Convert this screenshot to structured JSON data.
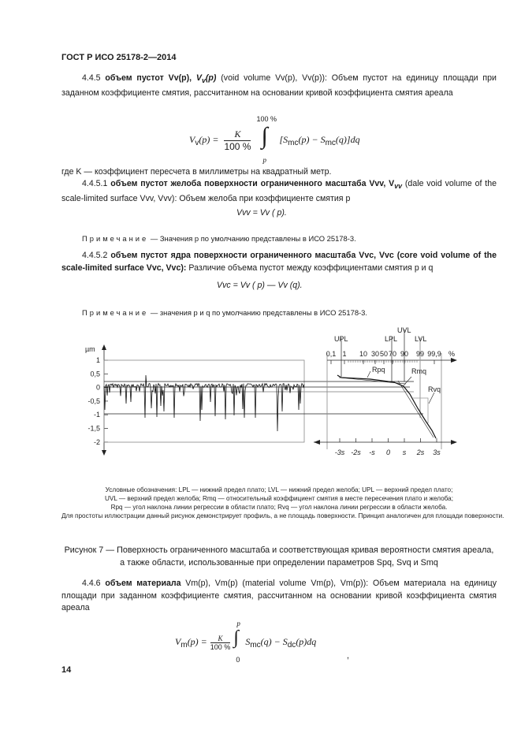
{
  "header": {
    "title": "ГОСТ Р ИСО 25178-2—2014"
  },
  "s445": {
    "num": "4.4.5",
    "term": "объем пустот Vv(p),",
    "term_sym": "V",
    "term_sub": "v",
    "term_arg": "(p)",
    "text": "(void volume Vv(p), Vv(p)): Объем пустот на единицу площади при заданном коэффициенте смятия, рассчитанном на основании кривой коэффициента смятия ареала",
    "formula": {
      "lhs": "V",
      "lhs_sub": "v",
      "lhs_arg": "(p) =",
      "num": "K",
      "den": "100 %",
      "upper": "100 %",
      "lower": "p",
      "body": "[S",
      "body_sub1": "mc",
      "body_mid": "(p) − S",
      "body_sub2": "mc",
      "body_end": "(q)]dq"
    },
    "where": "где K — коэффициент пересчета в миллиметры на квадратный метр."
  },
  "s4451": {
    "num": "4.4.5.1",
    "term": "объем пустот желоба поверхности ограниченного масштаба Vvv, V",
    "term_sub": "vv",
    "text": "(dale void volume of the scale-limited surface Vvv, Vvv): Объем желоба при коэффициенте смятия p",
    "formula": "Vvv = Vv ( p).",
    "note_label": "Примечание",
    "note": "— Значения p по умолчанию представлены в ИСО 25178-3."
  },
  "s4452": {
    "num": "4.4.5.2",
    "term": "объем пустот ядра поверхности ограниченного масштаба Vvc, Vvc (core void volume of the scale-limited surface Vvc, Vvc):",
    "text": "Различие объема пустот между коэффициентами смятия p и q",
    "formula": "Vvc = Vv ( p) — Vv (q).",
    "note_label": "Примечание",
    "note": "— значения p и q по умолчанию представлены в ИСО 25178-3."
  },
  "figure": {
    "y_unit": "µm",
    "y_ticks": [
      "1",
      "0,5",
      "0",
      "-0,5",
      "-1",
      "-1,5",
      "-2"
    ],
    "top_labels": [
      "UPL",
      "LPL",
      "UVL",
      "LVL"
    ],
    "pct_ticks": [
      "0,1",
      "1",
      "10",
      "30",
      "50",
      "70",
      "90",
      "99",
      "99,9",
      "%"
    ],
    "s_ticks": [
      "-3s",
      "-2s",
      "-s",
      "0",
      "s",
      "2s",
      "3s"
    ],
    "curve_labels": [
      "Rpq",
      "Rmq",
      "Rvq"
    ]
  },
  "legend": [
    "Условные обозначения: LPL — нижний предел плато; LVL — нижний предел желоба; UPL — верхний предел плато;",
    "UVL — верхний предел желоба; Rmq — относительный коэффициент смятия в месте пересечения плато и желоба;",
    "Rpq — угол наклона линии регрессии в области плато; Rvq — угол наклона линии регрессии в области желоба.",
    "Для простоты иллюстрации данный рисунок демонстрирует профиль, а не площадь поверхности. Принцип аналогичен для площади поверхности."
  ],
  "caption": "Рисунок 7 — Поверхность ограниченного масштаба и соответствующая кривая вероятности смятия ареала, а также области, использованные при определении параметров Spq, Svq и Smq",
  "s446": {
    "num": "4.4.6",
    "term": "объем материала",
    "text": "Vm(p), Vm(p) (material volume Vm(p), Vm(p)): Объем материала на единицу площади при заданном коэффициенте смятия, рассчитанном на основании кривой коэффициента смятия ареала",
    "formula": {
      "lhs": "V",
      "lhs_sub": "m",
      "lhs_arg": "(p) =",
      "num": "K",
      "den": "100 %",
      "upper": "p",
      "lower": "0",
      "body": "S",
      "sub1": "mc",
      "mid": "(q) − S",
      "sub2": "dc",
      "end": "(p)dq"
    },
    "trail": ","
  },
  "footer": {
    "page_number": "14"
  }
}
